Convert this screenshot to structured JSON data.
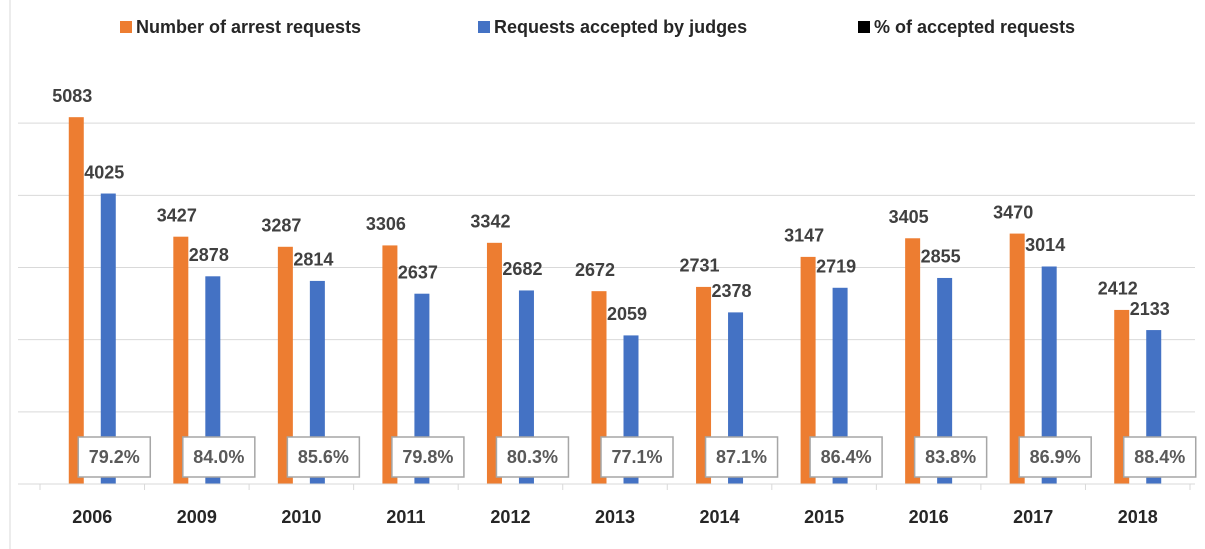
{
  "chart_data": {
    "type": "bar",
    "categories": [
      "2006",
      "2009",
      "2010",
      "2011",
      "2012",
      "2013",
      "2014",
      "2015",
      "2016",
      "2017",
      "2018"
    ],
    "series": [
      {
        "name": "Number of arrest requests",
        "color": "#ed7d31",
        "values": [
          5083,
          3427,
          3287,
          3306,
          3342,
          2672,
          2731,
          3147,
          3405,
          3470,
          2412
        ]
      },
      {
        "name": "Requests accepted by judges",
        "color": "#4472c4",
        "values": [
          4025,
          2878,
          2814,
          2637,
          2682,
          2059,
          2378,
          2719,
          2855,
          3014,
          2133
        ]
      },
      {
        "name": "% of accepted requests",
        "color": "#000000",
        "values": [
          79.2,
          84.0,
          85.6,
          79.8,
          80.3,
          77.1,
          87.1,
          86.4,
          83.8,
          86.9,
          88.4
        ],
        "value_labels": [
          "79.2%",
          "84.0%",
          "85.6%",
          "79.8%",
          "80.3%",
          "77.1%",
          "87.1%",
          "86.4%",
          "83.8%",
          "86.9%",
          "88.4%"
        ]
      }
    ],
    "ylim": [
      0,
      6000
    ],
    "yticks": [
      0,
      1000,
      2000,
      3000,
      4000,
      5000
    ],
    "show_ytick_labels": false,
    "grid": true,
    "legend": "top"
  }
}
